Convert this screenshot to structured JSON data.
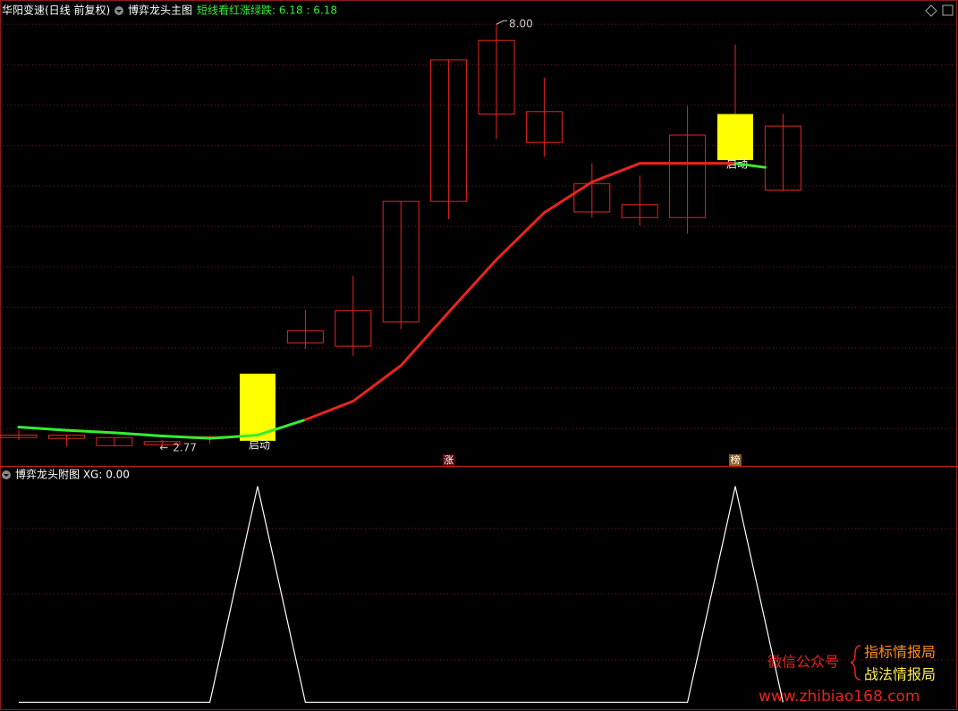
{
  "chart_data": [
    {
      "type": "candlestick",
      "title": "华阳变速(日线 前复权)",
      "subtitle": "博弈龙头主图",
      "legend_text": "短线看红涨绿跌: 6.18 : 6.18",
      "open": [
        2.89,
        2.88,
        2.79,
        2.8,
        2.88,
        2.85,
        4.06,
        4.02,
        4.32,
        5.81,
        6.89,
        6.54,
        5.68,
        5.61,
        5.61,
        6.32,
        5.95
      ],
      "high": [
        2.98,
        2.92,
        2.89,
        2.86,
        2.92,
        3.68,
        4.47,
        4.89,
        5.81,
        7.56,
        8.0,
        7.34,
        6.28,
        6.13,
        6.99,
        7.75,
        6.89
      ],
      "low": [
        2.86,
        2.78,
        2.79,
        2.77,
        2.81,
        2.85,
        3.99,
        3.9,
        4.23,
        5.59,
        6.58,
        6.36,
        5.61,
        5.51,
        5.41,
        6.31,
        5.95
      ],
      "close": [
        2.92,
        2.92,
        2.89,
        2.84,
        2.9,
        3.68,
        4.21,
        4.46,
        5.81,
        7.56,
        7.8,
        6.92,
        6.03,
        5.77,
        6.63,
        6.89,
        6.74
      ],
      "color": "#e8241e",
      "signal_color": "#ffff00",
      "signal_labels": [
        null,
        null,
        null,
        null,
        null,
        "启动",
        null,
        null,
        null,
        null,
        null,
        null,
        null,
        null,
        null,
        "启动",
        null
      ],
      "high_labels": [
        null,
        null,
        null,
        null,
        null,
        null,
        null,
        null,
        null,
        null,
        "8.00",
        null,
        null,
        null,
        null,
        null,
        null
      ],
      "low_labels": [
        null,
        null,
        null,
        "2.77",
        null,
        null,
        null,
        null,
        null,
        null,
        null,
        null,
        null,
        null,
        null,
        null,
        null
      ],
      "bottom_markers": [
        null,
        null,
        null,
        null,
        null,
        null,
        null,
        null,
        null,
        "涨",
        null,
        null,
        null,
        null,
        null,
        "榜",
        null
      ],
      "line": {
        "values": [
          3.02,
          2.98,
          2.95,
          2.91,
          2.88,
          2.92,
          3.11,
          3.34,
          3.78,
          4.44,
          5.09,
          5.67,
          6.05,
          6.28,
          6.28,
          6.28,
          6.23
        ],
        "point_colors": [
          "#33ee33",
          "#33ee33",
          "#33ee33",
          "#33ee33",
          "#33ee33",
          "#33ee33",
          "#33ee33",
          "#e8241e",
          "#e8241e",
          "#e8241e",
          "#e8241e",
          "#e8241e",
          "#e8241e",
          "#e8241e",
          "#e8241e",
          "#e8241e",
          "#33ee33"
        ]
      },
      "ylim": [
        2.55,
        8.3
      ],
      "yticks": [
        3,
        3.5,
        4,
        4.5,
        5,
        5.5,
        6,
        6.5,
        7,
        7.5,
        8
      ],
      "grid": true
    },
    {
      "type": "line",
      "title": "博弈龙头附图 XG: 0.00",
      "values": [
        0,
        0,
        0,
        0,
        0,
        1,
        0,
        0,
        0,
        0,
        0,
        0,
        0,
        0,
        0,
        1,
        0
      ],
      "color": "#ffffff",
      "ylim": [
        -0.04,
        1.09
      ]
    }
  ],
  "watermark": {
    "label": "微信公众号",
    "line1": "指标情报局",
    "line2": "战法情报局",
    "url": "www.zhibiao168.com"
  }
}
